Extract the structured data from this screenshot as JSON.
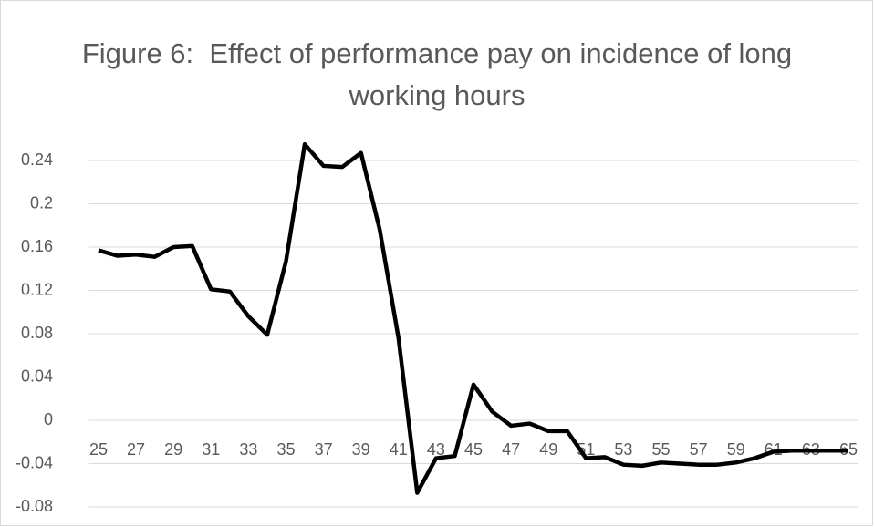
{
  "chart_data": {
    "type": "line",
    "title": "Figure 6:  Effect of performance pay on incidence of long working hours",
    "x": [
      25,
      26,
      27,
      28,
      29,
      30,
      31,
      32,
      33,
      34,
      35,
      36,
      37,
      38,
      39,
      40,
      41,
      42,
      43,
      44,
      45,
      46,
      47,
      48,
      49,
      50,
      51,
      52,
      53,
      54,
      55,
      56,
      57,
      58,
      59,
      60,
      61,
      62,
      63,
      64,
      65
    ],
    "series": [
      {
        "color": "#000000",
        "values": [
          0.157,
          0.152,
          0.153,
          0.151,
          0.16,
          0.161,
          0.121,
          0.119,
          0.096,
          0.079,
          0.147,
          0.255,
          0.235,
          0.234,
          0.247,
          0.176,
          0.076,
          -0.067,
          -0.035,
          -0.033,
          0.033,
          0.008,
          -0.005,
          -0.003,
          -0.01,
          -0.01,
          -0.035,
          -0.034,
          -0.041,
          -0.042,
          -0.039,
          -0.04,
          -0.041,
          -0.041,
          -0.039,
          -0.035,
          -0.029,
          -0.028,
          -0.028,
          -0.028,
          -0.028
        ]
      }
    ],
    "xlim": [
      24.5,
      65.5
    ],
    "xticks": [
      25,
      27,
      29,
      31,
      33,
      35,
      37,
      39,
      41,
      43,
      45,
      47,
      49,
      51,
      53,
      55,
      57,
      59,
      61,
      63,
      65
    ],
    "ylim": [
      -0.08,
      0.28
    ],
    "yticks": [
      -0.08,
      -0.04,
      0,
      0.04,
      0.08,
      0.12,
      0.16,
      0.2,
      0.24
    ],
    "grid": true
  }
}
